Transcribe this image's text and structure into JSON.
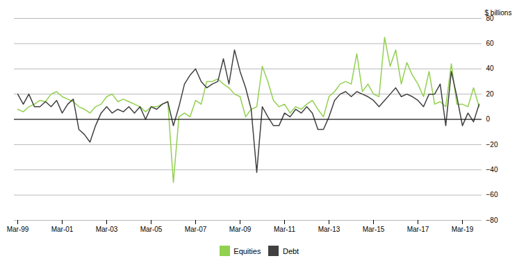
{
  "chart_data": {
    "type": "line",
    "categories": [
      "Mar-99",
      null,
      null,
      null,
      null,
      null,
      null,
      null,
      "Mar-01",
      null,
      null,
      null,
      null,
      null,
      null,
      null,
      "Mar-03",
      null,
      null,
      null,
      null,
      null,
      null,
      null,
      "Mar-05",
      null,
      null,
      null,
      null,
      null,
      null,
      null,
      "Mar-07",
      null,
      null,
      null,
      null,
      null,
      null,
      null,
      "Mar-09",
      null,
      null,
      null,
      null,
      null,
      null,
      null,
      "Mar-11",
      null,
      null,
      null,
      null,
      null,
      null,
      null,
      "Mar-13",
      null,
      null,
      null,
      null,
      null,
      null,
      null,
      "Mar-15",
      null,
      null,
      null,
      null,
      null,
      null,
      null,
      "Mar-17",
      null,
      null,
      null,
      null,
      null,
      null,
      null,
      "Mar-19",
      null,
      null,
      null
    ],
    "series": [
      {
        "name": "Equities",
        "color": "#92d050",
        "values": [
          8,
          6,
          10,
          12,
          15,
          14,
          20,
          22,
          18,
          16,
          14,
          10,
          8,
          5,
          10,
          12,
          18,
          20,
          14,
          16,
          14,
          12,
          10,
          6,
          10,
          10,
          12,
          14,
          -50,
          2,
          5,
          2,
          15,
          12,
          30,
          30,
          32,
          28,
          25,
          20,
          18,
          2,
          8,
          10,
          42,
          30,
          15,
          10,
          12,
          5,
          10,
          8,
          12,
          15,
          8,
          2,
          18,
          22,
          28,
          30,
          28,
          52,
          22,
          28,
          20,
          18,
          65,
          42,
          55,
          28,
          45,
          35,
          28,
          18,
          38,
          12,
          14,
          10,
          44,
          12,
          12,
          10,
          25,
          10
        ]
      },
      {
        "name": "Debt",
        "color": "#404040",
        "values": [
          20,
          12,
          20,
          10,
          10,
          14,
          10,
          15,
          5,
          12,
          16,
          -8,
          -12,
          -18,
          -5,
          5,
          10,
          5,
          8,
          6,
          10,
          5,
          10,
          0,
          10,
          8,
          12,
          14,
          -5,
          10,
          28,
          35,
          40,
          30,
          25,
          28,
          30,
          48,
          28,
          55,
          38,
          25,
          8,
          -42,
          10,
          2,
          -5,
          -5,
          5,
          2,
          8,
          5,
          10,
          5,
          -8,
          -8,
          2,
          15,
          20,
          22,
          18,
          22,
          20,
          18,
          15,
          10,
          15,
          20,
          25,
          18,
          20,
          18,
          15,
          10,
          20,
          20,
          28,
          -5,
          38,
          18,
          -5,
          5,
          -2,
          12
        ]
      }
    ],
    "ylabel": "$ billions",
    "ylim": [
      -80,
      80
    ],
    "yticks": [
      -80,
      -60,
      -40,
      -20,
      0,
      20,
      40,
      60,
      80
    ],
    "grid": true,
    "legend": "bottom"
  }
}
